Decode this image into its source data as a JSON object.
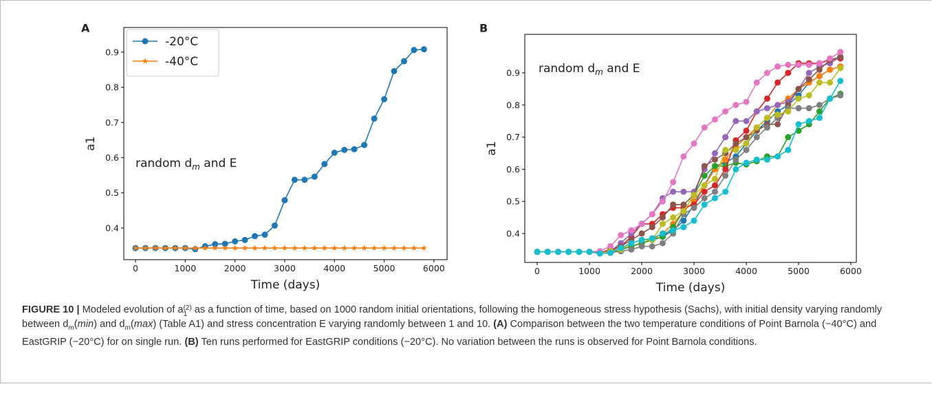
{
  "chart_data": [
    {
      "type": "line",
      "panel": "A",
      "xlabel": "Time (days)",
      "ylabel": "a1",
      "annotation": [
        "random d",
        "m",
        " and E"
      ],
      "xlim": [
        -235,
        6265
      ],
      "xticks": [
        0,
        1000,
        2000,
        3000,
        4000,
        5000,
        6000
      ],
      "ylim": [
        0.31,
        0.97
      ],
      "yticks": [
        0.4,
        0.5,
        0.6,
        0.7,
        0.8,
        0.9
      ],
      "legend": "upper left",
      "x": [
        0,
        200,
        400,
        600,
        800,
        1000,
        1200,
        1400,
        1600,
        1800,
        2000,
        2200,
        2400,
        2600,
        2800,
        3000,
        3200,
        3400,
        3600,
        3800,
        4000,
        4200,
        4400,
        4600,
        4800,
        5000,
        5200,
        5400,
        5600,
        5800
      ],
      "series": [
        {
          "name": "-20°C",
          "color": "#1f77b4",
          "marker": "circle",
          "values": [
            0.343,
            0.343,
            0.343,
            0.343,
            0.343,
            0.343,
            0.34,
            0.348,
            0.354,
            0.355,
            0.362,
            0.366,
            0.377,
            0.381,
            0.407,
            0.479,
            0.537,
            0.537,
            0.546,
            0.582,
            0.614,
            0.622,
            0.624,
            0.636,
            0.711,
            0.766,
            0.846,
            0.874,
            0.906,
            0.908
          ]
        },
        {
          "name": "-40°C",
          "color": "#ff7f0e",
          "marker": "star",
          "values": [
            0.343,
            0.343,
            0.343,
            0.343,
            0.343,
            0.343,
            0.343,
            0.343,
            0.343,
            0.343,
            0.343,
            0.343,
            0.343,
            0.343,
            0.343,
            0.343,
            0.343,
            0.343,
            0.343,
            0.343,
            0.343,
            0.343,
            0.343,
            0.343,
            0.343,
            0.343,
            0.343,
            0.343,
            0.343,
            0.343
          ]
        }
      ]
    },
    {
      "type": "line",
      "panel": "B",
      "xlabel": "Time (days)",
      "ylabel": "a1",
      "annotation": [
        "random d",
        "m",
        " and E"
      ],
      "xlim": [
        -237,
        6105
      ],
      "xticks": [
        0,
        1000,
        2000,
        3000,
        4000,
        5000,
        6000
      ],
      "ylim": [
        0.31,
        1.02
      ],
      "yticks": [
        0.4,
        0.5,
        0.6,
        0.7,
        0.8,
        0.9
      ],
      "x": [
        0,
        200,
        400,
        600,
        800,
        1000,
        1200,
        1400,
        1600,
        1800,
        2000,
        2200,
        2400,
        2600,
        2800,
        3000,
        3200,
        3400,
        3600,
        3800,
        4000,
        4200,
        4400,
        4600,
        4800,
        5000,
        5200,
        5400,
        5600,
        5800
      ],
      "series": [
        {
          "color": "#1f77b4",
          "marker": "circle",
          "values": [
            0.343,
            0.343,
            0.343,
            0.343,
            0.343,
            0.343,
            0.338,
            0.345,
            0.35,
            0.36,
            0.37,
            0.38,
            0.39,
            0.41,
            0.44,
            0.49,
            0.55,
            0.61,
            0.62,
            0.64,
            0.68,
            0.72,
            0.75,
            0.78,
            0.8,
            0.83,
            0.87,
            0.89,
            0.91,
            0.92
          ]
        },
        {
          "color": "#ff7f0e",
          "marker": "circle",
          "values": [
            0.343,
            0.343,
            0.343,
            0.343,
            0.343,
            0.343,
            0.34,
            0.345,
            0.35,
            0.36,
            0.37,
            0.38,
            0.4,
            0.43,
            0.47,
            0.5,
            0.55,
            0.6,
            0.63,
            0.67,
            0.7,
            0.73,
            0.76,
            0.8,
            0.82,
            0.85,
            0.87,
            0.89,
            0.91,
            0.92
          ]
        },
        {
          "color": "#2ca02c",
          "marker": "circle",
          "values": [
            0.343,
            0.343,
            0.343,
            0.343,
            0.343,
            0.343,
            0.338,
            0.34,
            0.35,
            0.36,
            0.37,
            0.38,
            0.39,
            0.42,
            0.47,
            0.52,
            0.58,
            0.61,
            0.61,
            0.62,
            0.615,
            0.625,
            0.64,
            0.64,
            0.7,
            0.72,
            0.74,
            0.78,
            0.82,
            0.835
          ]
        },
        {
          "color": "#d62728",
          "marker": "circle",
          "values": [
            0.343,
            0.343,
            0.343,
            0.343,
            0.343,
            0.343,
            0.34,
            0.35,
            0.36,
            0.39,
            0.43,
            0.43,
            0.46,
            0.48,
            0.48,
            0.49,
            0.53,
            0.55,
            0.6,
            0.69,
            0.72,
            0.78,
            0.82,
            0.87,
            0.9,
            0.93,
            0.93,
            0.93,
            0.94,
            0.945
          ]
        },
        {
          "color": "#9467bd",
          "marker": "circle",
          "values": [
            0.343,
            0.343,
            0.343,
            0.343,
            0.343,
            0.343,
            0.34,
            0.345,
            0.37,
            0.4,
            0.43,
            0.46,
            0.51,
            0.53,
            0.53,
            0.53,
            0.6,
            0.65,
            0.7,
            0.75,
            0.75,
            0.78,
            0.79,
            0.8,
            0.81,
            0.85,
            0.9,
            0.92,
            0.93,
            0.95
          ]
        },
        {
          "color": "#8c564b",
          "marker": "circle",
          "values": [
            0.343,
            0.343,
            0.343,
            0.343,
            0.343,
            0.343,
            0.34,
            0.345,
            0.36,
            0.38,
            0.4,
            0.42,
            0.45,
            0.49,
            0.49,
            0.52,
            0.61,
            0.63,
            0.65,
            0.68,
            0.7,
            0.72,
            0.74,
            0.74,
            0.8,
            0.85,
            0.88,
            0.91,
            0.94,
            0.95
          ]
        },
        {
          "color": "#e377c2",
          "marker": "circle",
          "values": [
            0.343,
            0.343,
            0.343,
            0.343,
            0.343,
            0.343,
            0.345,
            0.36,
            0.395,
            0.41,
            0.43,
            0.46,
            0.5,
            0.56,
            0.64,
            0.68,
            0.73,
            0.755,
            0.78,
            0.8,
            0.81,
            0.87,
            0.9,
            0.92,
            0.925,
            0.925,
            0.925,
            0.93,
            0.945,
            0.965
          ]
        },
        {
          "color": "#7f7f7f",
          "marker": "circle",
          "values": [
            0.343,
            0.343,
            0.343,
            0.343,
            0.343,
            0.343,
            0.338,
            0.34,
            0.345,
            0.35,
            0.36,
            0.36,
            0.37,
            0.4,
            0.46,
            0.48,
            0.51,
            0.53,
            0.58,
            0.63,
            0.66,
            0.7,
            0.73,
            0.76,
            0.79,
            0.79,
            0.79,
            0.8,
            0.82,
            0.83
          ]
        },
        {
          "color": "#bcbd22",
          "marker": "circle",
          "values": [
            0.343,
            0.343,
            0.343,
            0.343,
            0.343,
            0.343,
            0.338,
            0.345,
            0.35,
            0.37,
            0.38,
            0.38,
            0.43,
            0.45,
            0.47,
            0.52,
            0.55,
            0.57,
            0.66,
            0.66,
            0.68,
            0.73,
            0.76,
            0.77,
            0.78,
            0.82,
            0.83,
            0.87,
            0.87,
            0.915
          ]
        },
        {
          "color": "#17becf",
          "marker": "circle",
          "values": [
            0.343,
            0.343,
            0.343,
            0.343,
            0.343,
            0.343,
            0.338,
            0.34,
            0.355,
            0.37,
            0.38,
            0.385,
            0.4,
            0.41,
            0.42,
            0.44,
            0.49,
            0.51,
            0.53,
            0.6,
            0.62,
            0.63,
            0.63,
            0.64,
            0.66,
            0.74,
            0.75,
            0.76,
            0.82,
            0.875
          ]
        }
      ]
    }
  ],
  "caption": {
    "parts": [
      "FIGURE 10 |",
      " Modeled evolution of a",
      "(2)",
      "1",
      " as a function of time, based on 1000 random initial orientations, following the homogeneous stress hypothesis (Sachs), with initial density varying randomly between d",
      "m",
      "(",
      "min",
      ") and d",
      "m",
      "(",
      "max",
      ") (Table A1) and stress concentration E varying randomly between 1 and 10. ",
      "(A)",
      " Comparison between the two temperature conditions of Point Barnola (−40°C) and EastGRIP (−20°C) for on single run. ",
      "(B)",
      " Ten runs performed for EastGRIP conditions (−20°C). No variation between the runs is observed for Point Barnola conditions."
    ]
  }
}
